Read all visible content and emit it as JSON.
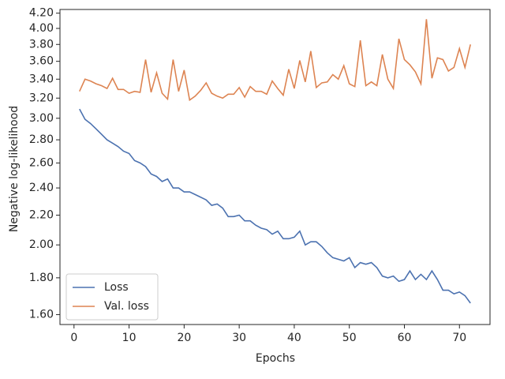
{
  "chart_data": {
    "type": "line",
    "xlabel": "Epochs",
    "ylabel": "Negative log-likelihood",
    "x": [
      1,
      2,
      3,
      4,
      5,
      6,
      7,
      8,
      9,
      10,
      11,
      12,
      13,
      14,
      15,
      16,
      17,
      18,
      19,
      20,
      21,
      22,
      23,
      24,
      25,
      26,
      27,
      28,
      29,
      30,
      31,
      32,
      33,
      34,
      35,
      36,
      37,
      38,
      39,
      40,
      41,
      42,
      43,
      44,
      45,
      46,
      47,
      48,
      49,
      50,
      51,
      52,
      53,
      54,
      55,
      56,
      57,
      58,
      59,
      60,
      61,
      62,
      63,
      64,
      65,
      66,
      67,
      68,
      69,
      70,
      71,
      72
    ],
    "series": [
      {
        "name": "Loss",
        "color": "#4c72b0",
        "values": [
          3.09,
          2.99,
          2.95,
          2.9,
          2.85,
          2.8,
          2.77,
          2.74,
          2.7,
          2.68,
          2.62,
          2.6,
          2.57,
          2.51,
          2.49,
          2.45,
          2.47,
          2.4,
          2.4,
          2.37,
          2.37,
          2.35,
          2.33,
          2.31,
          2.27,
          2.28,
          2.25,
          2.19,
          2.19,
          2.2,
          2.16,
          2.16,
          2.13,
          2.11,
          2.1,
          2.07,
          2.09,
          2.04,
          2.04,
          2.05,
          2.09,
          2.0,
          2.02,
          2.02,
          1.99,
          1.95,
          1.92,
          1.91,
          1.9,
          1.92,
          1.86,
          1.89,
          1.88,
          1.89,
          1.86,
          1.81,
          1.8,
          1.81,
          1.78,
          1.79,
          1.84,
          1.79,
          1.82,
          1.79,
          1.84,
          1.79,
          1.73,
          1.73,
          1.71,
          1.72,
          1.7,
          1.66
        ]
      },
      {
        "name": "Val. loss",
        "color": "#dd8452",
        "values": [
          3.27,
          3.4,
          3.38,
          3.35,
          3.33,
          3.3,
          3.41,
          3.29,
          3.29,
          3.25,
          3.27,
          3.26,
          3.62,
          3.26,
          3.47,
          3.25,
          3.19,
          3.62,
          3.27,
          3.5,
          3.18,
          3.22,
          3.28,
          3.36,
          3.25,
          3.22,
          3.2,
          3.24,
          3.24,
          3.31,
          3.21,
          3.32,
          3.27,
          3.27,
          3.24,
          3.38,
          3.3,
          3.23,
          3.51,
          3.3,
          3.61,
          3.37,
          3.72,
          3.31,
          3.36,
          3.37,
          3.45,
          3.4,
          3.55,
          3.35,
          3.32,
          3.85,
          3.33,
          3.37,
          3.33,
          3.68,
          3.4,
          3.3,
          3.87,
          3.62,
          3.56,
          3.48,
          3.35,
          4.12,
          3.41,
          3.64,
          3.62,
          3.49,
          3.53,
          3.75,
          3.53,
          3.8
        ]
      }
    ],
    "xlim": [
      -2.55,
      75.55
    ],
    "xticks": [
      0,
      10,
      20,
      30,
      40,
      50,
      60,
      70
    ],
    "ylim": [
      1.55,
      4.25
    ],
    "yscale": "log",
    "yticks": [
      {
        "value": 1.6,
        "label": "1.60"
      },
      {
        "value": 1.8,
        "label": "1.80"
      },
      {
        "value": 2.0,
        "label": "2.00"
      },
      {
        "value": 2.2,
        "label": "2.20"
      },
      {
        "value": 2.4,
        "label": "2.40"
      },
      {
        "value": 2.6,
        "label": "2.60"
      },
      {
        "value": 2.8,
        "label": "2.80"
      },
      {
        "value": 3.0,
        "label": "3.00"
      },
      {
        "value": 3.2,
        "label": "3.20"
      },
      {
        "value": 3.4,
        "label": "3.40"
      },
      {
        "value": 3.6,
        "label": "3.60"
      },
      {
        "value": 3.8,
        "label": "3.80"
      },
      {
        "value": 4.0,
        "label": "4.00"
      },
      {
        "value": 4.2,
        "label": "4.20"
      }
    ],
    "legend": "lower left",
    "grid": false
  }
}
